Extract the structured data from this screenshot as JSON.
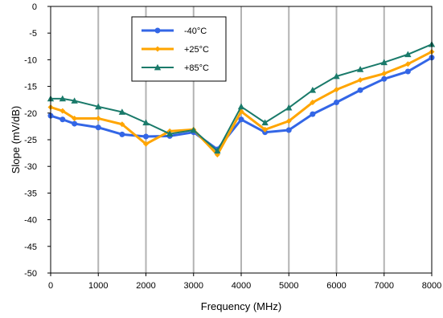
{
  "chart_data": {
    "type": "line",
    "title": "",
    "xlabel": "Frequency (MHz)",
    "ylabel": "Slope (mV/dB)",
    "xlim": [
      0,
      8000
    ],
    "ylim": [
      -50,
      0
    ],
    "x_ticks": [
      "0",
      "1000",
      "2000",
      "3000",
      "4000",
      "5000",
      "6000",
      "7000",
      "8000"
    ],
    "y_ticks": [
      "0",
      "-5",
      "-10",
      "-15",
      "-20",
      "-25",
      "-30",
      "-35",
      "-40",
      "-45",
      "-50"
    ],
    "grid": "vertical",
    "legend_position": "top-center",
    "series": [
      {
        "name": "-40°C",
        "color": "#3366e6",
        "marker": "circle",
        "x": [
          0,
          250,
          500,
          1000,
          1500,
          2000,
          2500,
          3000,
          3500,
          4000,
          4500,
          5000,
          5500,
          6000,
          6500,
          7000,
          7500,
          8000
        ],
        "y": [
          -20.5,
          -21.2,
          -22.0,
          -22.7,
          -24.0,
          -24.4,
          -24.3,
          -23.6,
          -26.8,
          -21.2,
          -23.6,
          -23.2,
          -20.2,
          -18.0,
          -15.7,
          -13.6,
          -12.2,
          -9.6
        ]
      },
      {
        "name": "+25°C",
        "color": "#ffa500",
        "marker": "diamond",
        "x": [
          0,
          250,
          500,
          1000,
          1500,
          2000,
          2500,
          3000,
          3500,
          4000,
          4500,
          5000,
          5500,
          6000,
          6500,
          7000,
          7500,
          8000
        ],
        "y": [
          -18.9,
          -19.6,
          -21.0,
          -21.0,
          -22.1,
          -25.8,
          -23.4,
          -23.1,
          -27.8,
          -19.7,
          -23.1,
          -21.5,
          -18.0,
          -15.6,
          -13.8,
          -12.6,
          -10.8,
          -8.5
        ]
      },
      {
        "name": "+85°C",
        "color": "#1a7a6a",
        "marker": "triangle",
        "x": [
          0,
          250,
          500,
          1000,
          1500,
          2000,
          2500,
          3000,
          3500,
          4000,
          4500,
          5000,
          5500,
          6000,
          6500,
          7000,
          7500,
          8000
        ],
        "y": [
          -17.3,
          -17.3,
          -17.7,
          -18.8,
          -19.8,
          -21.8,
          -23.9,
          -23.2,
          -27.1,
          -18.8,
          -21.8,
          -19.0,
          -15.7,
          -13.1,
          -11.8,
          -10.5,
          -9.0,
          -7.1
        ]
      }
    ]
  }
}
